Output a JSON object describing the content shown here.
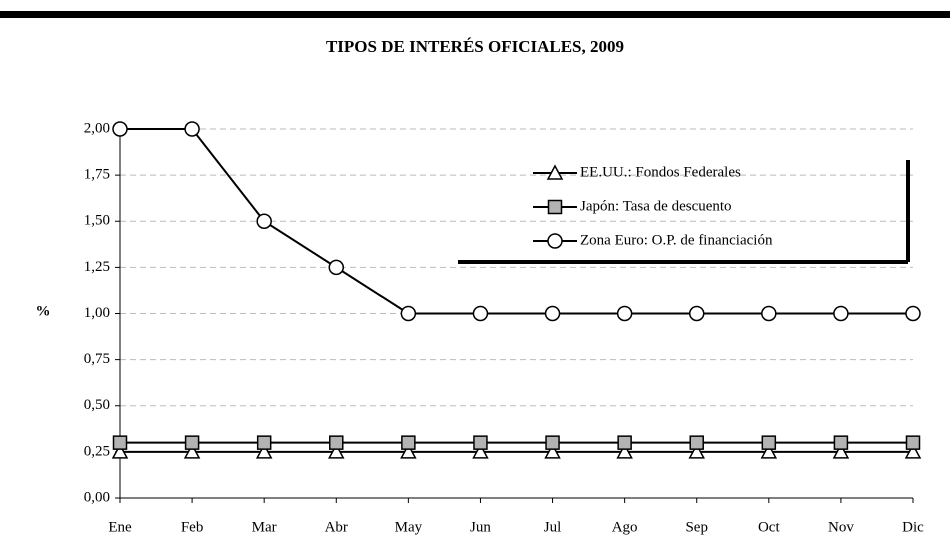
{
  "chart_data": {
    "type": "line",
    "title": "TIPOS DE INTERÉS OFICIALES, 2009",
    "y_label": "%",
    "categories": [
      "Ene",
      "Feb",
      "Mar",
      "Abr",
      "May",
      "Jun",
      "Jul",
      "Ago",
      "Sep",
      "Oct",
      "Nov",
      "Dic"
    ],
    "series": [
      {
        "name": "EE.UU.: Fondos Federales",
        "color": "#000000",
        "marker": "triangle",
        "marker_fill": "#ffffff",
        "values": [
          0.25,
          0.25,
          0.25,
          0.25,
          0.25,
          0.25,
          0.25,
          0.25,
          0.25,
          0.25,
          0.25,
          0.25
        ]
      },
      {
        "name": "Japón: Tasa de descuento",
        "color": "#000000",
        "marker": "square",
        "marker_fill": "#b3b3b3",
        "values": [
          0.3,
          0.3,
          0.3,
          0.3,
          0.3,
          0.3,
          0.3,
          0.3,
          0.3,
          0.3,
          0.3,
          0.3
        ]
      },
      {
        "name": "Zona Euro: O.P. de financiación",
        "color": "#000000",
        "marker": "circle",
        "marker_fill": "#ffffff",
        "values": [
          2,
          2,
          1.5,
          1.25,
          1,
          1,
          1,
          1,
          1,
          1,
          1,
          1
        ]
      }
    ],
    "ylim": [
      0,
      2
    ],
    "yticks": [
      {
        "value": 0,
        "label": "0,00"
      },
      {
        "value": 0.25,
        "label": "0,25"
      },
      {
        "value": 0.5,
        "label": "0,50"
      },
      {
        "value": 0.75,
        "label": "0,75"
      },
      {
        "value": 1,
        "label": "1,00"
      },
      {
        "value": 1.25,
        "label": "1,25"
      },
      {
        "value": 1.5,
        "label": "1,50"
      },
      {
        "value": 1.75,
        "label": "1,75"
      },
      {
        "value": 2,
        "label": "2,00"
      }
    ],
    "grid": true,
    "legend": "upper right"
  }
}
